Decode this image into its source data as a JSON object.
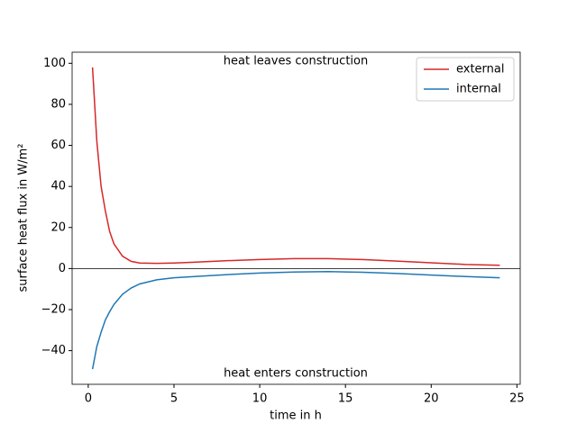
{
  "chart_data": {
    "type": "line",
    "xlabel": "time in h",
    "ylabel": "surface heat flux in W/m²",
    "annotations": [
      "heat leaves construction",
      "heat enters construction"
    ],
    "axhline": 0,
    "legend": "upper right",
    "xlim": [
      -0.94,
      25.19
    ],
    "xticks": [
      0,
      5,
      10,
      15,
      20,
      25
    ],
    "ylim": [
      -56.4,
      105.4
    ],
    "yticks": [
      {
        "value": -40,
        "label": "−40"
      },
      {
        "value": -20,
        "label": "−20"
      },
      0,
      20,
      40,
      60,
      80,
      100
    ],
    "x": [
      0.25,
      0.5,
      0.75,
      1,
      1.25,
      1.5,
      2,
      2.5,
      3,
      4,
      5,
      6,
      8,
      10,
      12,
      14,
      16,
      18,
      20,
      22,
      24
    ],
    "series": [
      {
        "name": "external",
        "color": "#d62728",
        "values": [
          98,
          62,
          40,
          28,
          18,
          12,
          6,
          3.5,
          2.7,
          2.5,
          2.7,
          3,
          3.8,
          4.4,
          4.8,
          4.8,
          4.4,
          3.6,
          2.8,
          2,
          1.6
        ]
      },
      {
        "name": "internal",
        "color": "#1f77b4",
        "values": [
          -49,
          -38,
          -31,
          -25,
          -21,
          -17.5,
          -12.5,
          -9.5,
          -7.5,
          -5.5,
          -4.5,
          -4,
          -3,
          -2.2,
          -1.7,
          -1.5,
          -1.8,
          -2.4,
          -3.2,
          -3.9,
          -4.5
        ]
      }
    ]
  }
}
